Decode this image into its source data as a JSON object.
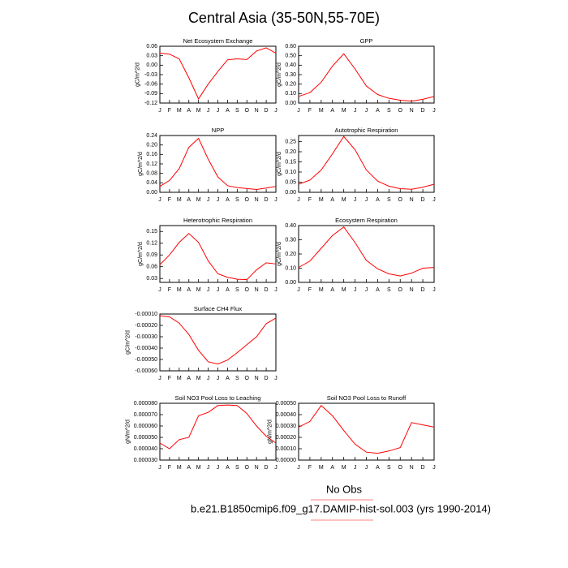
{
  "title": "Central Asia (35-50N,55-70E)",
  "legend": "No Obs",
  "caption": "b.e21.B1850cmip6.f09_g17.DAMIP-hist-sol.003 (yrs 1990-2014)",
  "chart_data": [
    {
      "type": "line",
      "title": "Net Ecosystem Exchange",
      "ylabel": "gC/m^2/d",
      "categories": [
        "J",
        "F",
        "M",
        "A",
        "M",
        "J",
        "J",
        "A",
        "S",
        "O",
        "N",
        "D",
        "J"
      ],
      "series": [
        {
          "color": "#ff0000",
          "values": [
            0.038,
            0.035,
            0.02,
            -0.04,
            -0.107,
            -0.06,
            -0.02,
            0.017,
            0.02,
            0.018,
            0.045,
            0.055,
            0.038
          ]
        }
      ],
      "ylim": [
        -0.12,
        0.06
      ],
      "yticks": [
        -0.12,
        -0.09,
        -0.06,
        -0.03,
        {
          "value": 0,
          "label": "0.00"
        },
        0.03,
        0.06
      ]
    },
    {
      "type": "line",
      "title": "GPP",
      "ylabel": "gC/m^2/d",
      "categories": [
        "J",
        "F",
        "M",
        "A",
        "M",
        "J",
        "J",
        "A",
        "S",
        "O",
        "N",
        "D",
        "J"
      ],
      "series": [
        {
          "color": "#ff0000",
          "values": [
            0.07,
            0.11,
            0.22,
            0.39,
            0.52,
            0.36,
            0.18,
            0.09,
            0.05,
            0.03,
            0.02,
            0.04,
            0.07
          ]
        }
      ],
      "ylim": [
        0,
        0.6
      ],
      "yticks": [
        {
          "value": 0,
          "label": "0.00"
        },
        {
          "value": 0.1,
          "label": "0.10"
        },
        {
          "value": 0.2,
          "label": "0.20"
        },
        {
          "value": 0.3,
          "label": "0.30"
        },
        {
          "value": 0.4,
          "label": "0.40"
        },
        {
          "value": 0.5,
          "label": "0.50"
        },
        {
          "value": 0.6,
          "label": "0.60"
        }
      ]
    },
    {
      "type": "line",
      "title": "NPP",
      "ylabel": "gC/m^2/d",
      "categories": [
        "J",
        "F",
        "M",
        "A",
        "M",
        "J",
        "J",
        "A",
        "S",
        "O",
        "N",
        "D",
        "J"
      ],
      "series": [
        {
          "color": "#ff0000",
          "values": [
            0.025,
            0.05,
            0.1,
            0.19,
            0.228,
            0.14,
            0.065,
            0.028,
            0.02,
            0.016,
            0.012,
            0.018,
            0.025
          ]
        }
      ],
      "ylim": [
        0,
        0.24
      ],
      "yticks": [
        {
          "value": 0,
          "label": "0.00"
        },
        0.04,
        0.08,
        0.12,
        0.16,
        {
          "value": 0.2,
          "label": "0.20"
        },
        0.24
      ]
    },
    {
      "type": "line",
      "title": "Autotrophic Respiration",
      "ylabel": "gC/m^2/d",
      "categories": [
        "J",
        "F",
        "M",
        "A",
        "M",
        "J",
        "J",
        "A",
        "S",
        "O",
        "N",
        "D",
        "J"
      ],
      "series": [
        {
          "color": "#ff0000",
          "values": [
            0.04,
            0.06,
            0.11,
            0.19,
            0.275,
            0.21,
            0.11,
            0.055,
            0.03,
            0.018,
            0.015,
            0.025,
            0.04
          ]
        }
      ],
      "ylim": [
        0,
        0.28
      ],
      "yticks": [
        {
          "value": 0,
          "label": "0.00"
        },
        0.05,
        {
          "value": 0.1,
          "label": "0.10"
        },
        0.15,
        {
          "value": 0.2,
          "label": "0.20"
        },
        0.25
      ]
    },
    {
      "type": "line",
      "title": "Heterotrophic Respiration",
      "ylabel": "gC/m^2/d",
      "categories": [
        "J",
        "F",
        "M",
        "A",
        "M",
        "J",
        "J",
        "A",
        "S",
        "O",
        "N",
        "D",
        "J"
      ],
      "series": [
        {
          "color": "#ff0000",
          "values": [
            0.065,
            0.09,
            0.122,
            0.145,
            0.122,
            0.075,
            0.042,
            0.033,
            0.028,
            0.027,
            0.052,
            0.07,
            0.067
          ]
        }
      ],
      "ylim": [
        0.02,
        0.165
      ],
      "yticks": [
        0.03,
        0.06,
        0.09,
        0.12,
        0.15
      ]
    },
    {
      "type": "line",
      "title": "Ecosystem Respiration",
      "ylabel": "gC/m^2/d",
      "categories": [
        "J",
        "F",
        "M",
        "A",
        "M",
        "J",
        "J",
        "A",
        "S",
        "O",
        "N",
        "D",
        "J"
      ],
      "series": [
        {
          "color": "#ff0000",
          "values": [
            0.105,
            0.15,
            0.24,
            0.33,
            0.39,
            0.28,
            0.155,
            0.095,
            0.06,
            0.045,
            0.065,
            0.1,
            0.105
          ]
        }
      ],
      "ylim": [
        0,
        0.4
      ],
      "yticks": [
        {
          "value": 0,
          "label": "0.00"
        },
        {
          "value": 0.1,
          "label": "0.10"
        },
        {
          "value": 0.2,
          "label": "0.20"
        },
        {
          "value": 0.3,
          "label": "0.30"
        },
        {
          "value": 0.4,
          "label": "0.40"
        }
      ]
    },
    {
      "type": "line",
      "title": "Surface CH4 Flux",
      "ylabel": "gC/m^2/d",
      "categories": [
        "J",
        "F",
        "M",
        "A",
        "M",
        "J",
        "J",
        "A",
        "S",
        "O",
        "N",
        "D",
        "J"
      ],
      "series": [
        {
          "color": "#ff0000",
          "values": [
            -0.000115,
            -0.000125,
            -0.00018,
            -0.00028,
            -0.00042,
            -0.00052,
            -0.00054,
            -0.000505,
            -0.00044,
            -0.00037,
            -0.0003,
            -0.000185,
            -0.000135
          ]
        }
      ],
      "ylim": [
        -0.0006,
        -0.0001
      ],
      "yticks": [
        {
          "value": -0.0006,
          "label": "-0.00060"
        },
        {
          "value": -0.0005,
          "label": "-0.00050"
        },
        {
          "value": -0.0004,
          "label": "-0.00040"
        },
        {
          "value": -0.0003,
          "label": "-0.00030"
        },
        {
          "value": -0.0002,
          "label": "-0.00020"
        },
        {
          "value": -0.0001,
          "label": "-0.00010"
        }
      ]
    },
    {
      "type": "line",
      "title": "Soil NO3 Pool Loss to Leaching",
      "ylabel": "gN/m^2/d",
      "categories": [
        "J",
        "F",
        "M",
        "A",
        "M",
        "J",
        "J",
        "A",
        "S",
        "O",
        "N",
        "D",
        "J"
      ],
      "series": [
        {
          "color": "#ff0000",
          "values": [
            4.5e-05,
            4e-05,
            4.8e-05,
            5e-05,
            6.9e-05,
            7.2e-05,
            7.8e-05,
            7.85e-05,
            7.8e-05,
            7.1e-05,
            6e-05,
            5.1e-05,
            4.5e-05
          ]
        }
      ],
      "ylim": [
        3e-05,
        8e-05
      ],
      "yticks": [
        {
          "value": 3e-05,
          "label": "0.000030"
        },
        {
          "value": 4e-05,
          "label": "0.000040"
        },
        {
          "value": 5e-05,
          "label": "0.000050"
        },
        {
          "value": 6e-05,
          "label": "0.000060"
        },
        {
          "value": 7e-05,
          "label": "0.000070"
        },
        {
          "value": 8e-05,
          "label": "0.000080"
        }
      ]
    },
    {
      "type": "line",
      "title": "Soil NO3 Pool Loss to Runoff",
      "ylabel": "gN/m^2/d",
      "categories": [
        "J",
        "F",
        "M",
        "A",
        "M",
        "J",
        "J",
        "A",
        "S",
        "O",
        "N",
        "D",
        "J"
      ],
      "series": [
        {
          "color": "#ff0000",
          "values": [
            0.00029,
            0.00034,
            0.00048,
            0.00039,
            0.00026,
            0.00014,
            7e-05,
            6e-05,
            8e-05,
            0.00011,
            0.00033,
            0.00031,
            0.00029
          ]
        }
      ],
      "ylim": [
        0,
        0.0005
      ],
      "yticks": [
        {
          "value": 0,
          "label": "0.00000"
        },
        {
          "value": 0.0001,
          "label": "0.00010"
        },
        {
          "value": 0.0002,
          "label": "0.00020"
        },
        {
          "value": 0.0003,
          "label": "0.00030"
        },
        {
          "value": 0.0004,
          "label": "0.00040"
        },
        {
          "value": 0.0005,
          "label": "0.00050"
        }
      ]
    }
  ]
}
